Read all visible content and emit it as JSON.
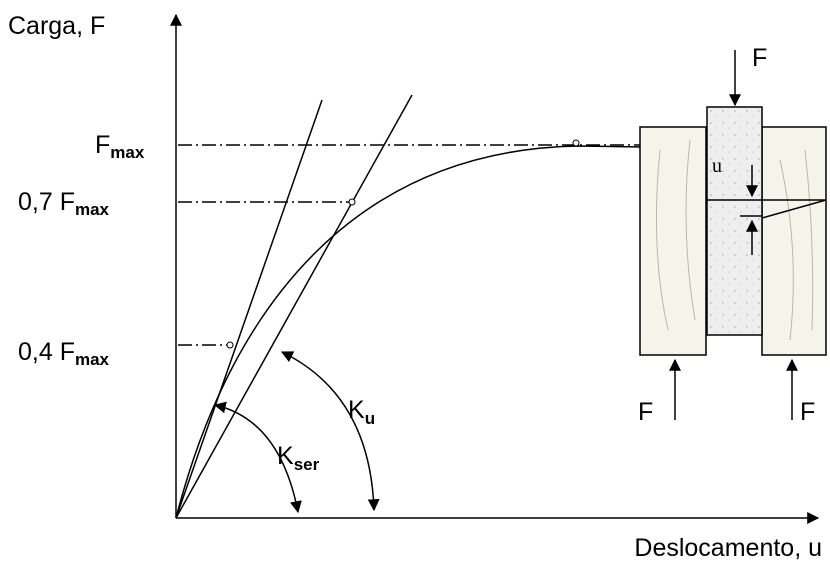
{
  "axes": {
    "y_label": "Carga, F",
    "x_label": "Deslocamento, u"
  },
  "levels": [
    {
      "label": "F",
      "subscript": "max"
    },
    {
      "label": "0,7 F",
      "subscript": "max"
    },
    {
      "label": "0,4 F",
      "subscript": "max"
    }
  ],
  "stiffness": [
    {
      "label": "K",
      "subscript": "u"
    },
    {
      "label": "K",
      "subscript": "ser"
    }
  ],
  "specimen": {
    "force_top": "F",
    "force_left": "F",
    "force_right": "F",
    "displacement": "u"
  }
}
